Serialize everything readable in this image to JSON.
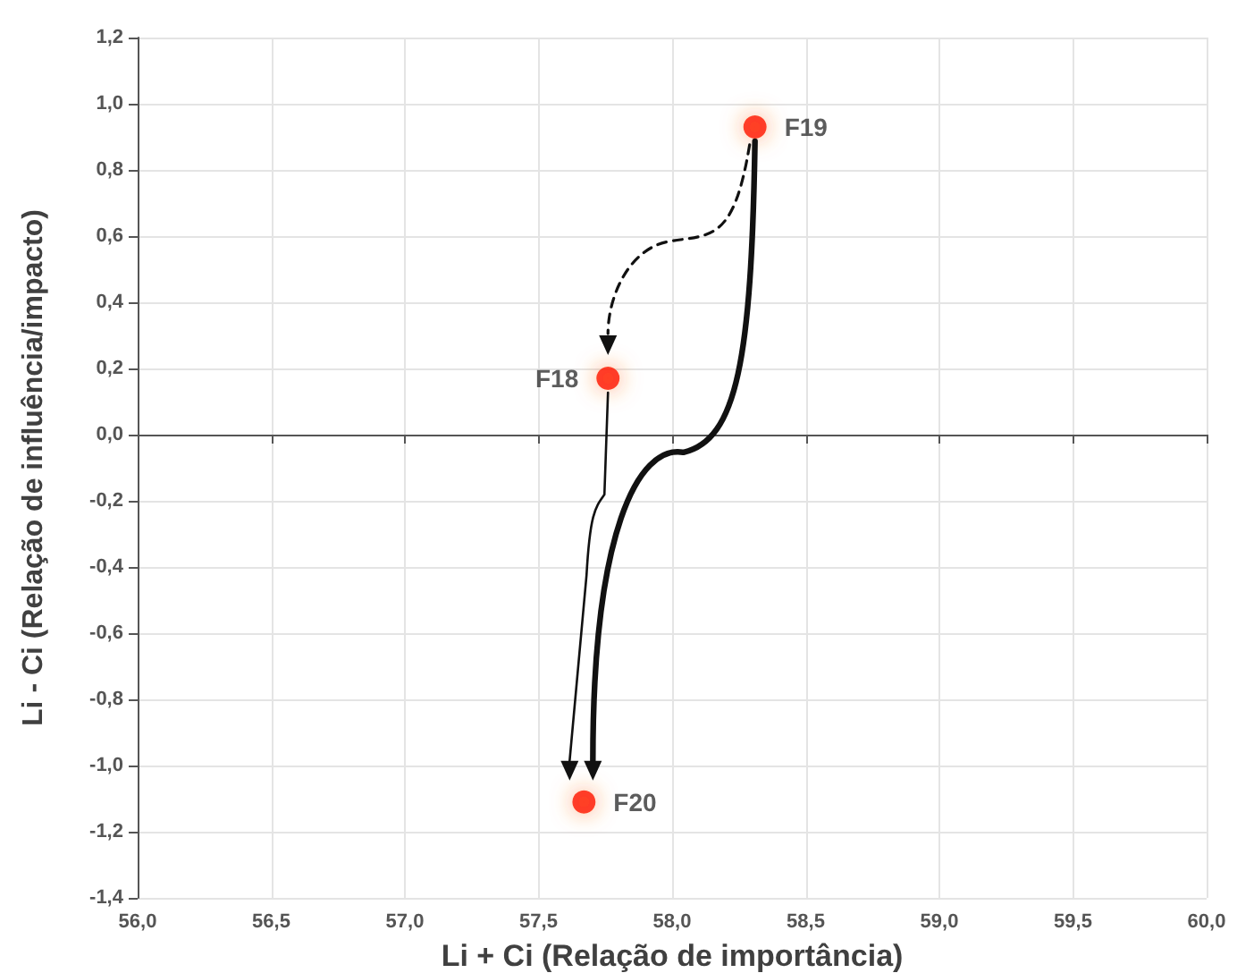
{
  "chart_data": {
    "type": "scatter",
    "xlabel": "Li + Ci (Relação de importância)",
    "ylabel": "Li - Ci (Relação de influência/impacto)",
    "series": [
      {
        "name": "F18",
        "color": "#ff0000",
        "x": [
          57.76
        ],
        "values": [
          0.17
        ]
      },
      {
        "name": "F19",
        "color": "#ff0000",
        "x": [
          58.31
        ],
        "values": [
          0.93
        ]
      },
      {
        "name": "F20",
        "color": "#ff0000",
        "x": [
          57.67
        ],
        "values": [
          -1.11
        ]
      }
    ],
    "xlim": [
      56,
      60
    ],
    "xticks": [
      {
        "value": 56,
        "label": "56,0"
      },
      {
        "value": 56.5,
        "label": "56,5"
      },
      {
        "value": 57,
        "label": "57,0"
      },
      {
        "value": 57.5,
        "label": "57,5"
      },
      {
        "value": 58,
        "label": "58,0"
      },
      {
        "value": 58.5,
        "label": "58,5"
      },
      {
        "value": 59,
        "label": "59,0"
      },
      {
        "value": 59.5,
        "label": "59,5"
      },
      {
        "value": 60,
        "label": "60,0"
      }
    ],
    "ylim": [
      -1.4,
      1.2
    ],
    "yticks": [
      {
        "value": -1.4,
        "label": "-1,4"
      },
      {
        "value": -1.2,
        "label": "-1,2"
      },
      {
        "value": -1,
        "label": "-1,0"
      },
      {
        "value": -0.8,
        "label": "-0,8"
      },
      {
        "value": -0.6,
        "label": "-0,6"
      },
      {
        "value": -0.4,
        "label": "-0,4"
      },
      {
        "value": -0.2,
        "label": "-0,2"
      },
      {
        "value": 0,
        "label": "0,0"
      },
      {
        "value": 0.2,
        "label": "0,2"
      },
      {
        "value": 0.4,
        "label": "0,4"
      },
      {
        "value": 0.6,
        "label": "0,6"
      },
      {
        "value": 0.8,
        "label": "0,8"
      },
      {
        "value": 1,
        "label": "1,0"
      },
      {
        "value": 1.2,
        "label": "1,2"
      }
    ],
    "grid": true,
    "legend": false,
    "marker": "circle"
  }
}
